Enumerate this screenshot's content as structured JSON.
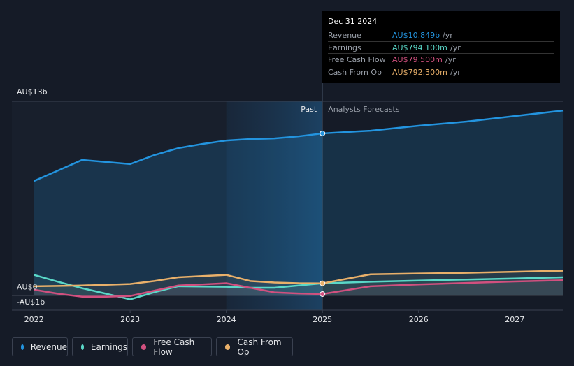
{
  "chart_data": {
    "type": "line",
    "x": [
      2022,
      2022.25,
      2022.5,
      2022.75,
      2023,
      2023.25,
      2023.5,
      2023.75,
      2024,
      2024.25,
      2024.5,
      2024.75,
      2025,
      2025.5,
      2026,
      2026.5,
      2027,
      2027.5
    ],
    "series": [
      {
        "name": "Revenue",
        "color": "#2394df",
        "values": [
          7.66,
          8.36,
          9.07,
          8.93,
          8.79,
          9.39,
          9.86,
          10.14,
          10.37,
          10.47,
          10.51,
          10.65,
          10.849,
          11.03,
          11.36,
          11.64,
          12.01,
          12.38
        ]
      },
      {
        "name": "Earnings",
        "color": "#5ad8c8",
        "values": [
          1.36,
          0.9,
          0.47,
          0.1,
          -0.28,
          0.2,
          0.6,
          0.58,
          0.56,
          0.5,
          0.5,
          0.65,
          0.7941,
          0.9,
          0.98,
          1.05,
          1.12,
          1.2
        ]
      },
      {
        "name": "Free Cash Flow",
        "color": "#d1507f",
        "values": [
          0.37,
          0.1,
          -0.1,
          -0.1,
          -0.05,
          0.3,
          0.65,
          0.72,
          0.8,
          0.5,
          0.19,
          0.12,
          0.0795,
          0.6,
          0.72,
          0.82,
          0.92,
          1.0
        ]
      },
      {
        "name": "Cash From Op",
        "color": "#e9b06a",
        "values": [
          0.6,
          0.62,
          0.65,
          0.7,
          0.75,
          0.95,
          1.2,
          1.28,
          1.36,
          0.95,
          0.85,
          0.8,
          0.7923,
          1.4,
          1.45,
          1.5,
          1.57,
          1.64
        ]
      }
    ],
    "xlim": [
      2021.77,
      2027.5
    ],
    "xticks": [
      2022,
      2023,
      2024,
      2025,
      2026,
      2027
    ],
    "ylim": [
      -1,
      13
    ],
    "yticks": [
      {
        "value": 13,
        "label": "AU$13b"
      },
      {
        "value": 0,
        "label": "AU$0"
      },
      {
        "value": -1,
        "label": "-AU$1b"
      }
    ],
    "forecast_start": 2025,
    "past_label": "Past",
    "forecast_label": "Analysts Forecasts"
  },
  "tooltip": {
    "date": "Dec 31 2024",
    "rows": [
      {
        "label": "Revenue",
        "value": "AU$10.849b",
        "unit": "/yr"
      },
      {
        "label": "Earnings",
        "value": "AU$794.100m",
        "unit": "/yr"
      },
      {
        "label": "Free Cash Flow",
        "value": "AU$79.500m",
        "unit": "/yr"
      },
      {
        "label": "Cash From Op",
        "value": "AU$792.300m",
        "unit": "/yr"
      }
    ]
  }
}
